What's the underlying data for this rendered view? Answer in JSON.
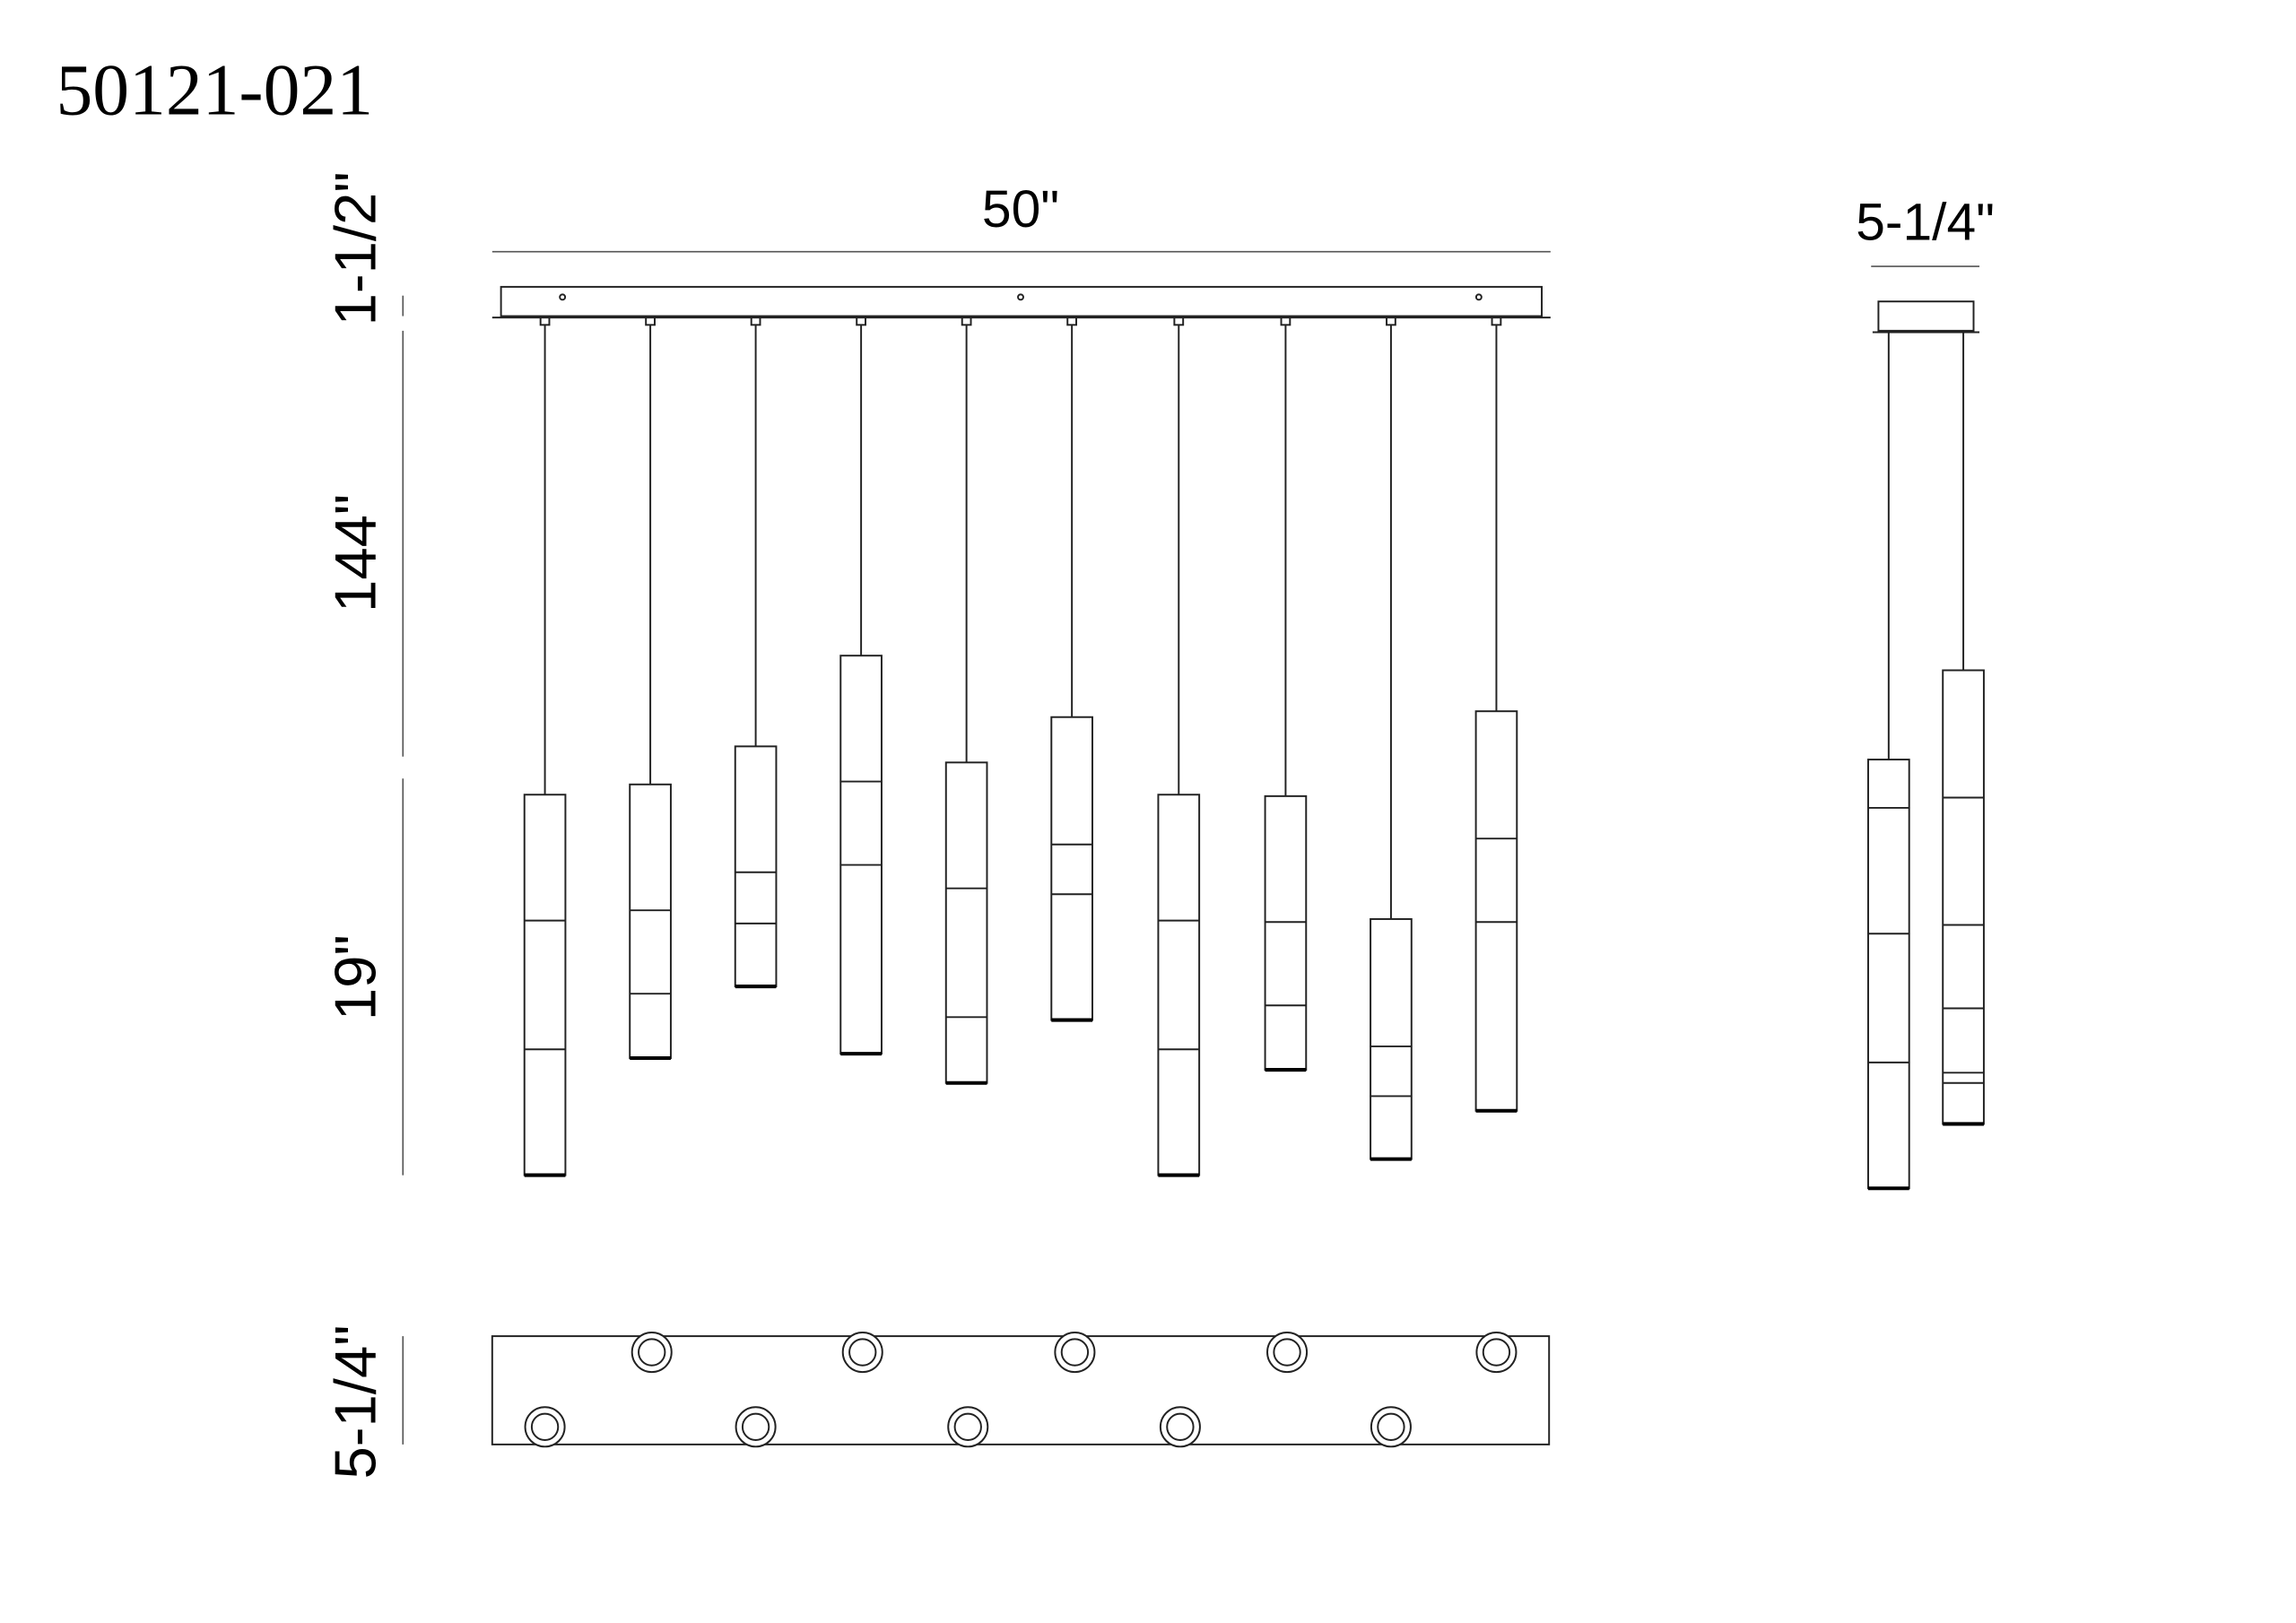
{
  "header": {
    "title": "50121-021"
  },
  "front_view": {
    "width_label": "50\"",
    "canopy_height_label": "1-1/2\"",
    "overall_height_label": "144\"",
    "shade_height_label": "19\""
  },
  "side_view": {
    "depth_label": "5-1/4\""
  },
  "bottom_view": {
    "depth_label": "5-1/4\""
  }
}
